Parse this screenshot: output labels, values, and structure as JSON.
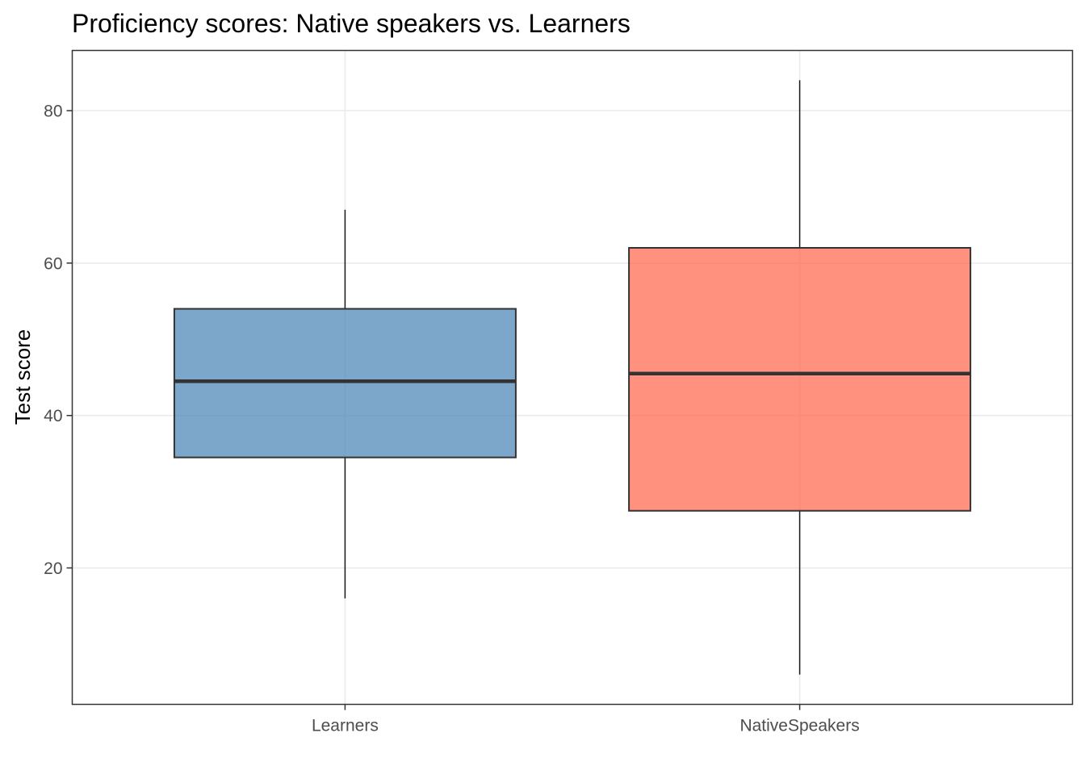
{
  "chart_data": {
    "type": "boxplot",
    "title": "Proficiency scores: Native speakers vs. Learners",
    "xlabel": "",
    "ylabel": "Test score",
    "categories": [
      "Learners",
      "NativeSpeakers"
    ],
    "boxes": [
      {
        "category": "Learners",
        "min": 16,
        "q1": 34.5,
        "median": 44.5,
        "q3": 54,
        "max": 67,
        "color": "#4682b4"
      },
      {
        "category": "NativeSpeakers",
        "min": 6,
        "q1": 27.5,
        "median": 45.5,
        "q3": 62,
        "max": 84,
        "color": "#ff6347"
      }
    ],
    "ylim": [
      2.1,
      87.9
    ],
    "yticks": [
      20,
      40,
      60,
      80
    ],
    "ytick_labels": [
      "20",
      "40",
      "60",
      "80"
    ],
    "grid": true,
    "legend": "none"
  },
  "colors": {
    "learners_fill": "#4682b4",
    "native_fill": "#ff6347",
    "box_outline": "#333333",
    "grid": "#ebebeb",
    "panel_border": "#333333"
  }
}
